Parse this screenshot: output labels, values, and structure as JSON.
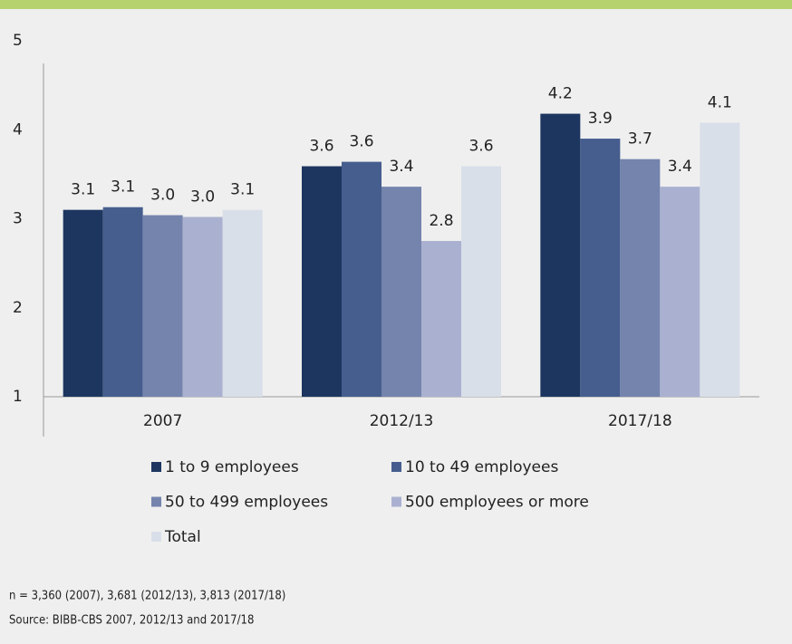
{
  "chart_data": {
    "type": "bar",
    "categories": [
      "2007",
      "2012/13",
      "2017/18"
    ],
    "series": [
      {
        "name": "1 to 9 employees",
        "color": "#1d3660",
        "values": [
          3.1,
          3.59,
          4.18
        ],
        "value_labels": [
          "3.1",
          "3.6",
          "4.2"
        ]
      },
      {
        "name": "10 to 49 employees",
        "color": "#465e8e",
        "values": [
          3.13,
          3.64,
          3.9
        ],
        "value_labels": [
          "3.1",
          "3.6",
          "3.9"
        ]
      },
      {
        "name": "50 to 499 employees",
        "color": "#7584ad",
        "values": [
          3.04,
          3.36,
          3.67
        ],
        "value_labels": [
          "3.0",
          "3.4",
          "3.7"
        ]
      },
      {
        "name": "500 employees or more",
        "color": "#aab1d0",
        "values": [
          3.02,
          2.75,
          3.36
        ],
        "value_labels": [
          "3.0",
          "2.8",
          "3.4"
        ]
      },
      {
        "name": "Total",
        "color": "#d9dfe9",
        "values": [
          3.1,
          3.59,
          4.08
        ],
        "value_labels": [
          "3.1",
          "3.6",
          "4.1"
        ]
      }
    ],
    "ylim": [
      1,
      5
    ],
    "yticks": [
      1,
      2,
      3,
      4,
      5
    ],
    "grid": false,
    "footnotes": [
      "n = 3,360 (2007), 3,681 (2012/13), 3,813 (2017/18)",
      "Source: BIBB-CBS 2007, 2012/13 and 2017/18"
    ]
  }
}
